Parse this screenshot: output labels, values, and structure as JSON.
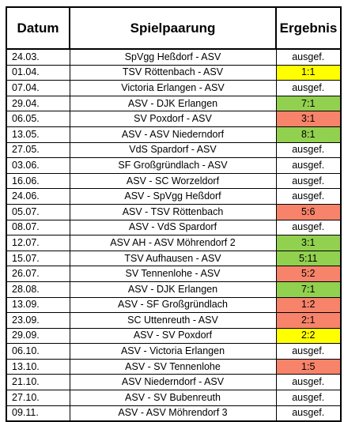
{
  "colors": {
    "green": "#92d050",
    "red": "#f7836b",
    "yellow": "#ffff00"
  },
  "headers": {
    "datum": "Datum",
    "spiel": "Spielpaarung",
    "ergebnis": "Ergebnis"
  },
  "rows": [
    {
      "datum": "24.03.",
      "spiel": "SpVgg Heßdorf - ASV",
      "ergebnis": "ausgef.",
      "color": ""
    },
    {
      "datum": "01.04.",
      "spiel": "TSV Röttenbach - ASV",
      "ergebnis": "1:1",
      "color": "yellow"
    },
    {
      "datum": "07.04.",
      "spiel": "Victoria Erlangen - ASV",
      "ergebnis": "ausgef.",
      "color": ""
    },
    {
      "datum": "29.04.",
      "spiel": "ASV - DJK Erlangen",
      "ergebnis": "7:1",
      "color": "green"
    },
    {
      "datum": "06.05.",
      "spiel": "SV Poxdorf - ASV",
      "ergebnis": "3:1",
      "color": "red"
    },
    {
      "datum": "13.05.",
      "spiel": "ASV - ASV Niederndorf",
      "ergebnis": "8:1",
      "color": "green"
    },
    {
      "datum": "27.05.",
      "spiel": "VdS Spardorf - ASV",
      "ergebnis": "ausgef.",
      "color": ""
    },
    {
      "datum": "03.06.",
      "spiel": "SF Großgründlach - ASV",
      "ergebnis": "ausgef.",
      "color": ""
    },
    {
      "datum": "16.06.",
      "spiel": "ASV - SC Worzeldorf",
      "ergebnis": "ausgef.",
      "color": ""
    },
    {
      "datum": "24.06.",
      "spiel": "ASV - SpVgg Heßdorf",
      "ergebnis": "ausgef.",
      "color": ""
    },
    {
      "datum": "05.07.",
      "spiel": "ASV - TSV Röttenbach",
      "ergebnis": "5:6",
      "color": "red"
    },
    {
      "datum": "08.07.",
      "spiel": "ASV - VdS Spardorf",
      "ergebnis": "ausgef.",
      "color": ""
    },
    {
      "datum": "12.07.",
      "spiel": "ASV AH - ASV Möhrendorf 2",
      "ergebnis": "3:1",
      "color": "green"
    },
    {
      "datum": "15.07.",
      "spiel": "TSV Aufhausen - ASV",
      "ergebnis": "5:11",
      "color": "green"
    },
    {
      "datum": "26.07.",
      "spiel": "SV Tennenlohe - ASV",
      "ergebnis": "5:2",
      "color": "red"
    },
    {
      "datum": "28.08.",
      "spiel": "ASV - DJK Erlangen",
      "ergebnis": "7:1",
      "color": "green"
    },
    {
      "datum": "13.09.",
      "spiel": "ASV - SF Großgründlach",
      "ergebnis": "1:2",
      "color": "red"
    },
    {
      "datum": "23.09.",
      "spiel": "SC Uttenreuth - ASV",
      "ergebnis": "2:1",
      "color": "red"
    },
    {
      "datum": "29.09.",
      "spiel": "ASV - SV Poxdorf",
      "ergebnis": "2:2",
      "color": "yellow"
    },
    {
      "datum": "06.10.",
      "spiel": "ASV - Victoria Erlangen",
      "ergebnis": "ausgef.",
      "color": ""
    },
    {
      "datum": "13.10.",
      "spiel": "ASV - SV Tennenlohe",
      "ergebnis": "1:5",
      "color": "red"
    },
    {
      "datum": "21.10.",
      "spiel": "ASV Niederndorf - ASV",
      "ergebnis": "ausgef.",
      "color": ""
    },
    {
      "datum": "27.10.",
      "spiel": "ASV - SV Bubenreuth",
      "ergebnis": "ausgef.",
      "color": ""
    },
    {
      "datum": "09.11.",
      "spiel": "ASV - ASV Möhrendorf 3",
      "ergebnis": "ausgef.",
      "color": ""
    }
  ]
}
